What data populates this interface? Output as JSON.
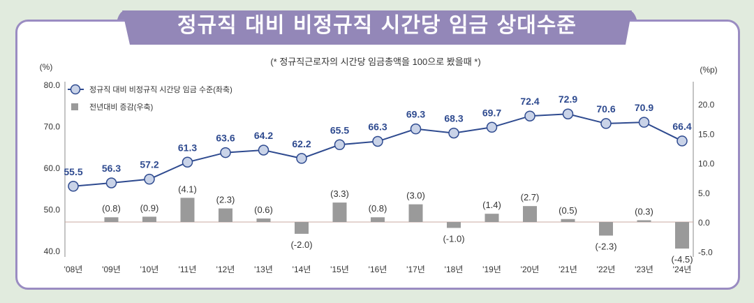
{
  "title": "정규직 대비 비정규직 시간당 임금 상대수준",
  "colors": {
    "banner": "#9387b8",
    "line": "#2e4a8f",
    "marker_fill": "#c9d3e8",
    "bar": "#9a9a9a",
    "border": "#9a8cc2",
    "background": "#e1ebde"
  },
  "chart_data": {
    "type": "line+bar",
    "subtitle": "(* 정규직근로자의 시간당 임금총액을 100으로 봤을때 *)",
    "left_unit": "(%)",
    "right_unit": "(%p)",
    "categories": [
      "'08년",
      "'09년",
      "'10년",
      "'11년",
      "'12년",
      "'13년",
      "'14년",
      "'15년",
      "'16년",
      "'17년",
      "'18년",
      "'19년",
      "'20년",
      "'21년",
      "'22년",
      "'23년",
      "'24년"
    ],
    "left_ticks": [
      "80.0",
      "70.0",
      "60.0",
      "50.0",
      "40.0"
    ],
    "right_ticks": [
      "20.0",
      "15.0",
      "10.0",
      "5.0",
      "0.0",
      "-5.0"
    ],
    "ylim_left": [
      40,
      80
    ],
    "ylim_right": [
      -5,
      20
    ],
    "series": [
      {
        "name": "정규직 대비 비정규직 시간당 임금 수준(좌축)",
        "type": "line",
        "axis": "left",
        "values": [
          55.5,
          56.3,
          57.2,
          61.3,
          63.6,
          64.2,
          62.2,
          65.5,
          66.3,
          69.3,
          68.3,
          69.7,
          72.4,
          72.9,
          70.6,
          70.9,
          66.4
        ],
        "labels": [
          "55.5",
          "56.3",
          "57.2",
          "61.3",
          "63.6",
          "64.2",
          "62.2",
          "65.5",
          "66.3",
          "69.3",
          "68.3",
          "69.7",
          "72.4",
          "72.9",
          "70.6",
          "70.9",
          "66.4"
        ]
      },
      {
        "name": "전년대비 증감(우축)",
        "type": "bar",
        "axis": "right",
        "values": [
          null,
          0.8,
          0.9,
          4.1,
          2.3,
          0.6,
          -2.0,
          3.3,
          0.8,
          3.0,
          -1.0,
          1.4,
          2.7,
          0.5,
          -2.3,
          0.3,
          -4.5
        ],
        "labels": [
          "",
          "(0.8)",
          "(0.9)",
          "(4.1)",
          "(2.3)",
          "(0.6)",
          "(-2.0)",
          "(3.3)",
          "(0.8)",
          "(3.0)",
          "(-1.0)",
          "(1.4)",
          "(2.7)",
          "(0.5)",
          "(-2.3)",
          "(0.3)",
          "(-4.5)"
        ]
      }
    ],
    "legend_placement": "top-left",
    "grid": false
  }
}
